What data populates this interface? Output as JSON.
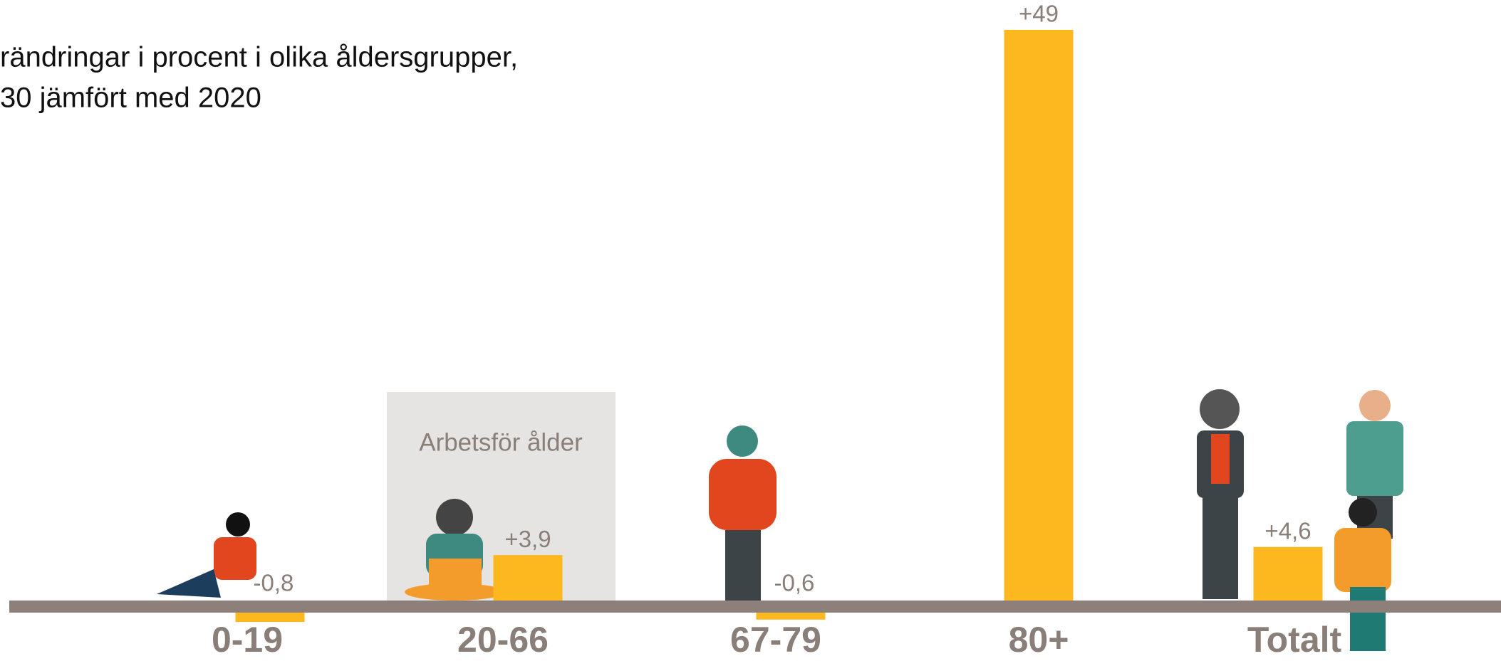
{
  "chart_data": {
    "type": "bar",
    "title": [
      "rändringar i procent i olika åldersgrupper,",
      "30 jämfört med 2020"
    ],
    "annotation": "Arbetsför ålder",
    "categories": [
      "0-19",
      "20-66",
      "67-79",
      "80+",
      "Totalt"
    ],
    "values": [
      -0.8,
      3.9,
      -0.6,
      49,
      4.6
    ],
    "value_labels": [
      "-0,8",
      "+3,9",
      "-0,6",
      "+49",
      "+4,6"
    ],
    "color": "#fdb71f"
  }
}
